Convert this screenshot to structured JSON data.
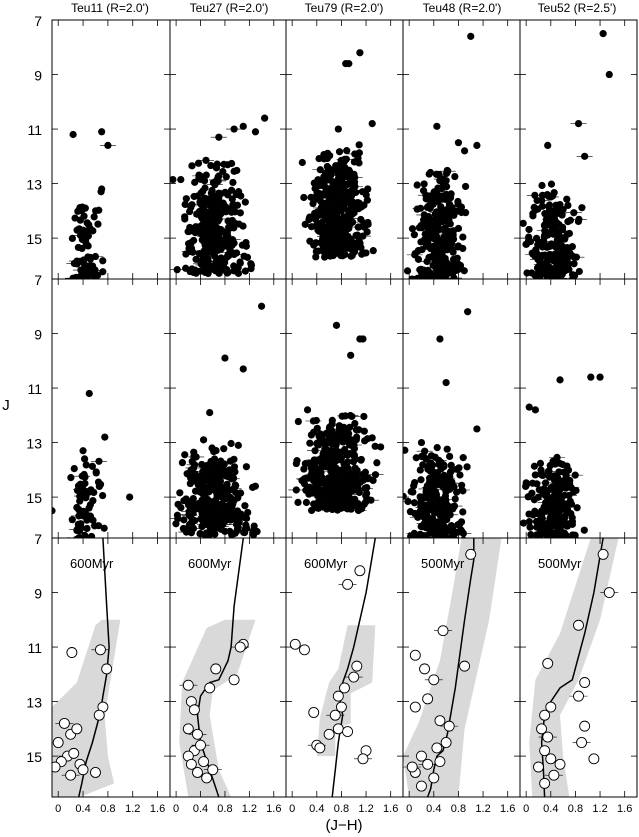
{
  "figure": {
    "xlabel": "(J−H)",
    "ylabel": "J"
  },
  "chart_data": {
    "type": "scatter",
    "xlabel": "(J−H)",
    "ylabel": "J",
    "xlim": [
      -0.1,
      1.8
    ],
    "ylim": [
      16.5,
      7.0
    ],
    "y_inverted": true,
    "x_ticks": [
      "0",
      "0.4",
      "0.8",
      "1.2",
      "1.6"
    ],
    "x_tick_values": [
      0,
      0.4,
      0.8,
      1.2,
      1.6
    ],
    "y_ticks": [
      "7",
      "9",
      "11",
      "13",
      "15"
    ],
    "y_tick_values": [
      7,
      9,
      11,
      13,
      15
    ],
    "columns": [
      {
        "title": "Teu11 (R=2.0')"
      },
      {
        "title": "Teu27 (R=2.0')"
      },
      {
        "title": "Teu79 (R=2.0')"
      },
      {
        "title": "Teu48 (R=2.0')"
      },
      {
        "title": "Teu52 (R=2.5')"
      }
    ],
    "panels": [
      {
        "row": 0,
        "col": 0,
        "seed": 11,
        "n": 70,
        "x_center": 0.45,
        "x_spread": 0.35,
        "j_min": 13.6,
        "j_max": 16.5,
        "extra_points": [
          [
            0.24,
            11.2
          ],
          [
            0.7,
            11.1
          ],
          [
            0.8,
            11.6
          ],
          [
            0.69,
            13.3
          ],
          [
            0.7,
            13.2
          ]
        ]
      },
      {
        "row": 0,
        "col": 1,
        "seed": 27,
        "n": 330,
        "x_center": 0.65,
        "x_spread": 0.75,
        "j_min": 12.0,
        "j_max": 16.3,
        "extra_points": [
          [
            1.45,
            10.6
          ],
          [
            1.1,
            10.9
          ],
          [
            0.95,
            11.0
          ],
          [
            1.3,
            11.1
          ],
          [
            0.7,
            11.3
          ]
        ]
      },
      {
        "row": 0,
        "col": 2,
        "seed": 79,
        "n": 380,
        "x_center": 0.72,
        "x_spread": 0.65,
        "j_min": 11.5,
        "j_max": 15.7,
        "extra_points": [
          [
            1.1,
            8.2
          ],
          [
            0.92,
            8.6
          ],
          [
            0.87,
            8.6
          ],
          [
            1.3,
            10.8
          ],
          [
            0.75,
            11.0
          ]
        ]
      },
      {
        "row": 0,
        "col": 3,
        "seed": 48,
        "n": 300,
        "x_center": 0.45,
        "x_spread": 0.6,
        "j_min": 12.5,
        "j_max": 16.8,
        "extra_points": [
          [
            1.0,
            7.6
          ],
          [
            0.45,
            10.9
          ],
          [
            1.1,
            11.6
          ],
          [
            0.8,
            11.5
          ],
          [
            0.9,
            11.8
          ]
        ]
      },
      {
        "row": 0,
        "col": 4,
        "seed": 52,
        "n": 250,
        "x_center": 0.45,
        "x_spread": 0.55,
        "j_min": 13.0,
        "j_max": 16.8,
        "extra_points": [
          [
            1.25,
            7.5
          ],
          [
            1.35,
            9.0
          ],
          [
            0.85,
            10.8
          ],
          [
            0.35,
            11.6
          ],
          [
            0.95,
            12.0
          ]
        ]
      },
      {
        "row": 1,
        "col": 0,
        "seed": 111,
        "n": 75,
        "x_center": 0.45,
        "x_spread": 0.35,
        "j_min": 13.5,
        "j_max": 16.7,
        "extra_points": [
          [
            0.5,
            11.2
          ],
          [
            0.75,
            12.8
          ],
          [
            0.4,
            13.3
          ],
          [
            1.15,
            15.0
          ],
          [
            -0.1,
            15.5
          ]
        ]
      },
      {
        "row": 1,
        "col": 1,
        "seed": 127,
        "n": 320,
        "x_center": 0.65,
        "x_spread": 0.8,
        "j_min": 13.0,
        "j_max": 16.4,
        "extra_points": [
          [
            1.4,
            8.0
          ],
          [
            0.8,
            9.9
          ],
          [
            1.1,
            10.3
          ],
          [
            0.45,
            12.9
          ],
          [
            0.55,
            11.9
          ]
        ]
      },
      {
        "row": 1,
        "col": 2,
        "seed": 179,
        "n": 380,
        "x_center": 0.7,
        "x_spread": 0.8,
        "j_min": 12.0,
        "j_max": 15.5,
        "extra_points": [
          [
            0.72,
            8.7
          ],
          [
            1.1,
            9.2
          ],
          [
            1.15,
            9.2
          ],
          [
            0.95,
            9.8
          ],
          [
            0.25,
            11.8
          ]
        ]
      },
      {
        "row": 1,
        "col": 3,
        "seed": 148,
        "n": 280,
        "x_center": 0.45,
        "x_spread": 0.6,
        "j_min": 13.0,
        "j_max": 16.8,
        "extra_points": [
          [
            0.95,
            8.2
          ],
          [
            0.5,
            9.2
          ],
          [
            0.6,
            10.8
          ],
          [
            1.1,
            12.5
          ],
          [
            0.2,
            13.0
          ]
        ]
      },
      {
        "row": 1,
        "col": 4,
        "seed": 152,
        "n": 240,
        "x_center": 0.45,
        "x_spread": 0.6,
        "j_min": 13.5,
        "j_max": 16.8,
        "extra_points": [
          [
            1.05,
            10.6
          ],
          [
            1.2,
            10.6
          ],
          [
            0.55,
            10.7
          ],
          [
            0.15,
            11.8
          ],
          [
            0.05,
            11.7
          ]
        ]
      }
    ],
    "isochrone_panels": [
      {
        "col": 0,
        "age_label": "600Myr",
        "isochrone": [
          [
            0.72,
            7.0
          ],
          [
            0.78,
            9.5
          ],
          [
            0.82,
            11.0
          ],
          [
            0.78,
            12.0
          ],
          [
            0.72,
            12.8
          ],
          [
            0.68,
            13.4
          ],
          [
            0.55,
            14.5
          ],
          [
            0.45,
            15.2
          ],
          [
            0.38,
            16.0
          ],
          [
            0.33,
            16.5
          ]
        ],
        "band": [
          [
            0.7,
            10.0
          ],
          [
            1.0,
            10.0
          ],
          [
            0.8,
            12.8
          ],
          [
            0.75,
            13.6
          ],
          [
            0.8,
            15.0
          ],
          [
            0.9,
            16.0
          ],
          [
            0.35,
            16.5
          ],
          [
            -0.1,
            16.5
          ],
          [
            -0.1,
            13.2
          ],
          [
            0.3,
            12.3
          ],
          [
            0.6,
            10.2
          ]
        ],
        "points": [
          [
            0.22,
            11.2
          ],
          [
            0.68,
            11.1
          ],
          [
            0.78,
            11.8
          ],
          [
            0.72,
            13.2
          ],
          [
            0.66,
            13.5
          ],
          [
            0.1,
            13.8
          ],
          [
            0.2,
            14.2
          ],
          [
            0.3,
            14.0
          ],
          [
            0.0,
            14.5
          ],
          [
            0.15,
            15.0
          ],
          [
            0.25,
            14.9
          ],
          [
            0.35,
            15.3
          ],
          [
            0.05,
            15.2
          ],
          [
            0.2,
            15.7
          ],
          [
            0.4,
            15.5
          ],
          [
            0.6,
            15.6
          ],
          [
            -0.05,
            15.4
          ]
        ]
      },
      {
        "col": 1,
        "age_label": "600Myr",
        "isochrone": [
          [
            1.1,
            7.0
          ],
          [
            0.95,
            9.5
          ],
          [
            0.9,
            11.0
          ],
          [
            0.85,
            11.5
          ],
          [
            0.7,
            12.2
          ],
          [
            0.55,
            12.3
          ],
          [
            0.4,
            12.8
          ],
          [
            0.35,
            13.5
          ],
          [
            0.4,
            14.5
          ],
          [
            0.55,
            15.5
          ],
          [
            0.7,
            16.5
          ]
        ],
        "band": [
          [
            0.8,
            10.0
          ],
          [
            1.3,
            10.0
          ],
          [
            1.0,
            12.0
          ],
          [
            0.6,
            12.6
          ],
          [
            0.55,
            13.5
          ],
          [
            0.7,
            15.5
          ],
          [
            0.9,
            16.5
          ],
          [
            0.2,
            16.5
          ],
          [
            0.05,
            14.5
          ],
          [
            0.1,
            12.3
          ],
          [
            0.5,
            10.3
          ]
        ],
        "points": [
          [
            1.1,
            10.9
          ],
          [
            1.05,
            11.0
          ],
          [
            0.95,
            12.2
          ],
          [
            0.55,
            12.5
          ],
          [
            0.65,
            11.8
          ],
          [
            0.2,
            12.4
          ],
          [
            0.25,
            13.0
          ],
          [
            0.3,
            13.3
          ],
          [
            0.2,
            14.0
          ],
          [
            0.35,
            14.2
          ],
          [
            0.3,
            14.8
          ],
          [
            0.2,
            15.0
          ],
          [
            0.45,
            15.2
          ],
          [
            0.6,
            15.5
          ],
          [
            0.35,
            15.6
          ],
          [
            0.5,
            15.8
          ],
          [
            0.25,
            15.3
          ],
          [
            0.4,
            14.6
          ]
        ]
      },
      {
        "col": 2,
        "age_label": "600Myr",
        "isochrone": [
          [
            1.35,
            7.0
          ],
          [
            1.2,
            9.0
          ],
          [
            1.0,
            11.0
          ],
          [
            0.9,
            11.8
          ],
          [
            0.82,
            12.3
          ],
          [
            0.78,
            13.0
          ],
          [
            0.82,
            13.5
          ],
          [
            0.75,
            14.5
          ],
          [
            0.7,
            15.5
          ],
          [
            0.65,
            16.5
          ]
        ],
        "band": [
          [
            0.9,
            10.2
          ],
          [
            1.35,
            10.2
          ],
          [
            1.3,
            12.3
          ],
          [
            0.95,
            12.7
          ],
          [
            0.95,
            13.8
          ],
          [
            0.7,
            14.0
          ],
          [
            0.7,
            15.0
          ],
          [
            0.4,
            15.0
          ],
          [
            0.45,
            13.6
          ],
          [
            0.6,
            12.3
          ],
          [
            0.75,
            11.8
          ]
        ],
        "points": [
          [
            1.1,
            8.2
          ],
          [
            0.9,
            8.7
          ],
          [
            0.05,
            10.9
          ],
          [
            0.2,
            11.1
          ],
          [
            1.05,
            11.7
          ],
          [
            1.0,
            12.1
          ],
          [
            0.85,
            12.5
          ],
          [
            0.75,
            12.8
          ],
          [
            0.8,
            13.2
          ],
          [
            0.7,
            13.5
          ],
          [
            0.75,
            14.0
          ],
          [
            0.6,
            14.2
          ],
          [
            0.35,
            13.4
          ],
          [
            0.4,
            14.6
          ],
          [
            0.45,
            14.7
          ],
          [
            0.9,
            14.1
          ],
          [
            1.2,
            14.8
          ],
          [
            1.15,
            15.1
          ]
        ]
      },
      {
        "col": 3,
        "age_label": "500Myr",
        "isochrone": [
          [
            1.05,
            7.0
          ],
          [
            1.05,
            7.8
          ],
          [
            1.0,
            8.5
          ],
          [
            0.9,
            10.0
          ],
          [
            0.75,
            12.5
          ],
          [
            0.62,
            14.2
          ],
          [
            0.55,
            14.8
          ],
          [
            0.45,
            15.0
          ],
          [
            0.4,
            15.5
          ],
          [
            0.35,
            16.2
          ],
          [
            0.3,
            16.5
          ]
        ],
        "band": [
          [
            0.85,
            7.0
          ],
          [
            1.5,
            7.0
          ],
          [
            1.3,
            10.0
          ],
          [
            0.9,
            14.0
          ],
          [
            0.8,
            16.5
          ],
          [
            0.0,
            16.5
          ],
          [
            -0.1,
            15.0
          ],
          [
            0.15,
            13.8
          ],
          [
            0.5,
            11.5
          ],
          [
            0.7,
            9.0
          ]
        ],
        "points": [
          [
            1.0,
            7.6
          ],
          [
            0.55,
            10.4
          ],
          [
            0.1,
            11.3
          ],
          [
            0.9,
            11.7
          ],
          [
            0.25,
            11.8
          ],
          [
            0.4,
            12.2
          ],
          [
            0.3,
            12.9
          ],
          [
            0.1,
            13.2
          ],
          [
            0.5,
            13.7
          ],
          [
            0.65,
            13.9
          ],
          [
            0.6,
            14.5
          ],
          [
            0.45,
            14.7
          ],
          [
            0.2,
            15.0
          ],
          [
            0.3,
            15.3
          ],
          [
            0.1,
            15.6
          ],
          [
            0.4,
            15.8
          ],
          [
            0.2,
            16.1
          ],
          [
            0.05,
            15.4
          ],
          [
            0.5,
            15.2
          ]
        ]
      },
      {
        "col": 4,
        "age_label": "500Myr",
        "isochrone": [
          [
            1.25,
            7.0
          ],
          [
            1.1,
            9.0
          ],
          [
            0.95,
            10.5
          ],
          [
            0.75,
            12.2
          ],
          [
            0.55,
            12.5
          ],
          [
            0.4,
            13.0
          ],
          [
            0.3,
            13.5
          ],
          [
            0.25,
            14.5
          ],
          [
            0.28,
            15.5
          ],
          [
            0.3,
            16.5
          ]
        ],
        "band": [
          [
            1.05,
            7.0
          ],
          [
            1.5,
            7.0
          ],
          [
            1.2,
            10.0
          ],
          [
            0.85,
            12.2
          ],
          [
            0.55,
            13.5
          ],
          [
            0.6,
            15.0
          ],
          [
            0.7,
            16.5
          ],
          [
            0.1,
            16.5
          ],
          [
            0.05,
            14.5
          ],
          [
            0.15,
            12.2
          ],
          [
            0.55,
            10.5
          ]
        ],
        "points": [
          [
            1.25,
            7.6
          ],
          [
            1.35,
            9.0
          ],
          [
            0.85,
            10.2
          ],
          [
            0.35,
            11.6
          ],
          [
            0.95,
            12.3
          ],
          [
            0.85,
            12.8
          ],
          [
            0.4,
            13.2
          ],
          [
            0.3,
            13.5
          ],
          [
            0.25,
            14.0
          ],
          [
            0.35,
            14.3
          ],
          [
            0.3,
            14.8
          ],
          [
            0.4,
            15.1
          ],
          [
            0.2,
            15.4
          ],
          [
            0.45,
            15.7
          ],
          [
            0.3,
            16.0
          ],
          [
            0.55,
            15.3
          ],
          [
            1.1,
            15.1
          ],
          [
            0.9,
            14.5
          ],
          [
            0.95,
            13.9
          ]
        ]
      }
    ]
  }
}
